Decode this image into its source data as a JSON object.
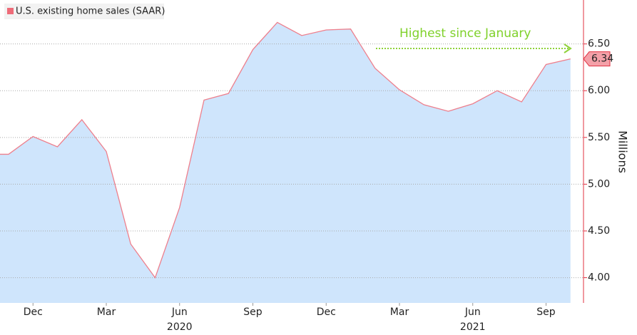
{
  "chart_data": {
    "type": "area",
    "legend_label": "U.S. existing home sales (SAAR)",
    "y_axis_label": "Millions",
    "annotation": "Highest since January",
    "categories": [
      null,
      "Dec",
      null,
      null,
      "Mar",
      null,
      null,
      "Jun",
      null,
      null,
      "Sep",
      null,
      null,
      "Dec",
      null,
      null,
      "Mar",
      null,
      null,
      "Jun",
      null,
      null,
      "Sep",
      null
    ],
    "year_labels": [
      "2020",
      "2021"
    ],
    "series": [
      {
        "name": "U.S. existing home sales (SAAR)",
        "color": "#ee7f8c",
        "fill": "#cfe5fc",
        "values": [
          5.32,
          5.51,
          5.4,
          5.69,
          5.35,
          4.36,
          4.0,
          4.75,
          5.9,
          5.97,
          6.44,
          6.73,
          6.59,
          6.65,
          6.66,
          6.24,
          6.01,
          5.85,
          5.78,
          5.86,
          6.0,
          5.88,
          6.28,
          6.34
        ],
        "last_value_label": "6.34"
      }
    ],
    "ylim": [
      3.73,
      6.97
    ],
    "yticks": [
      {
        "value": 4,
        "label": "4.00"
      },
      {
        "value": 4.5,
        "label": "4.50"
      },
      {
        "value": 5,
        "label": "5.00"
      },
      {
        "value": 5.5,
        "label": "5.50"
      },
      {
        "value": 6,
        "label": "6.00"
      },
      {
        "value": 6.5,
        "label": "6.50"
      }
    ],
    "grid": true
  }
}
